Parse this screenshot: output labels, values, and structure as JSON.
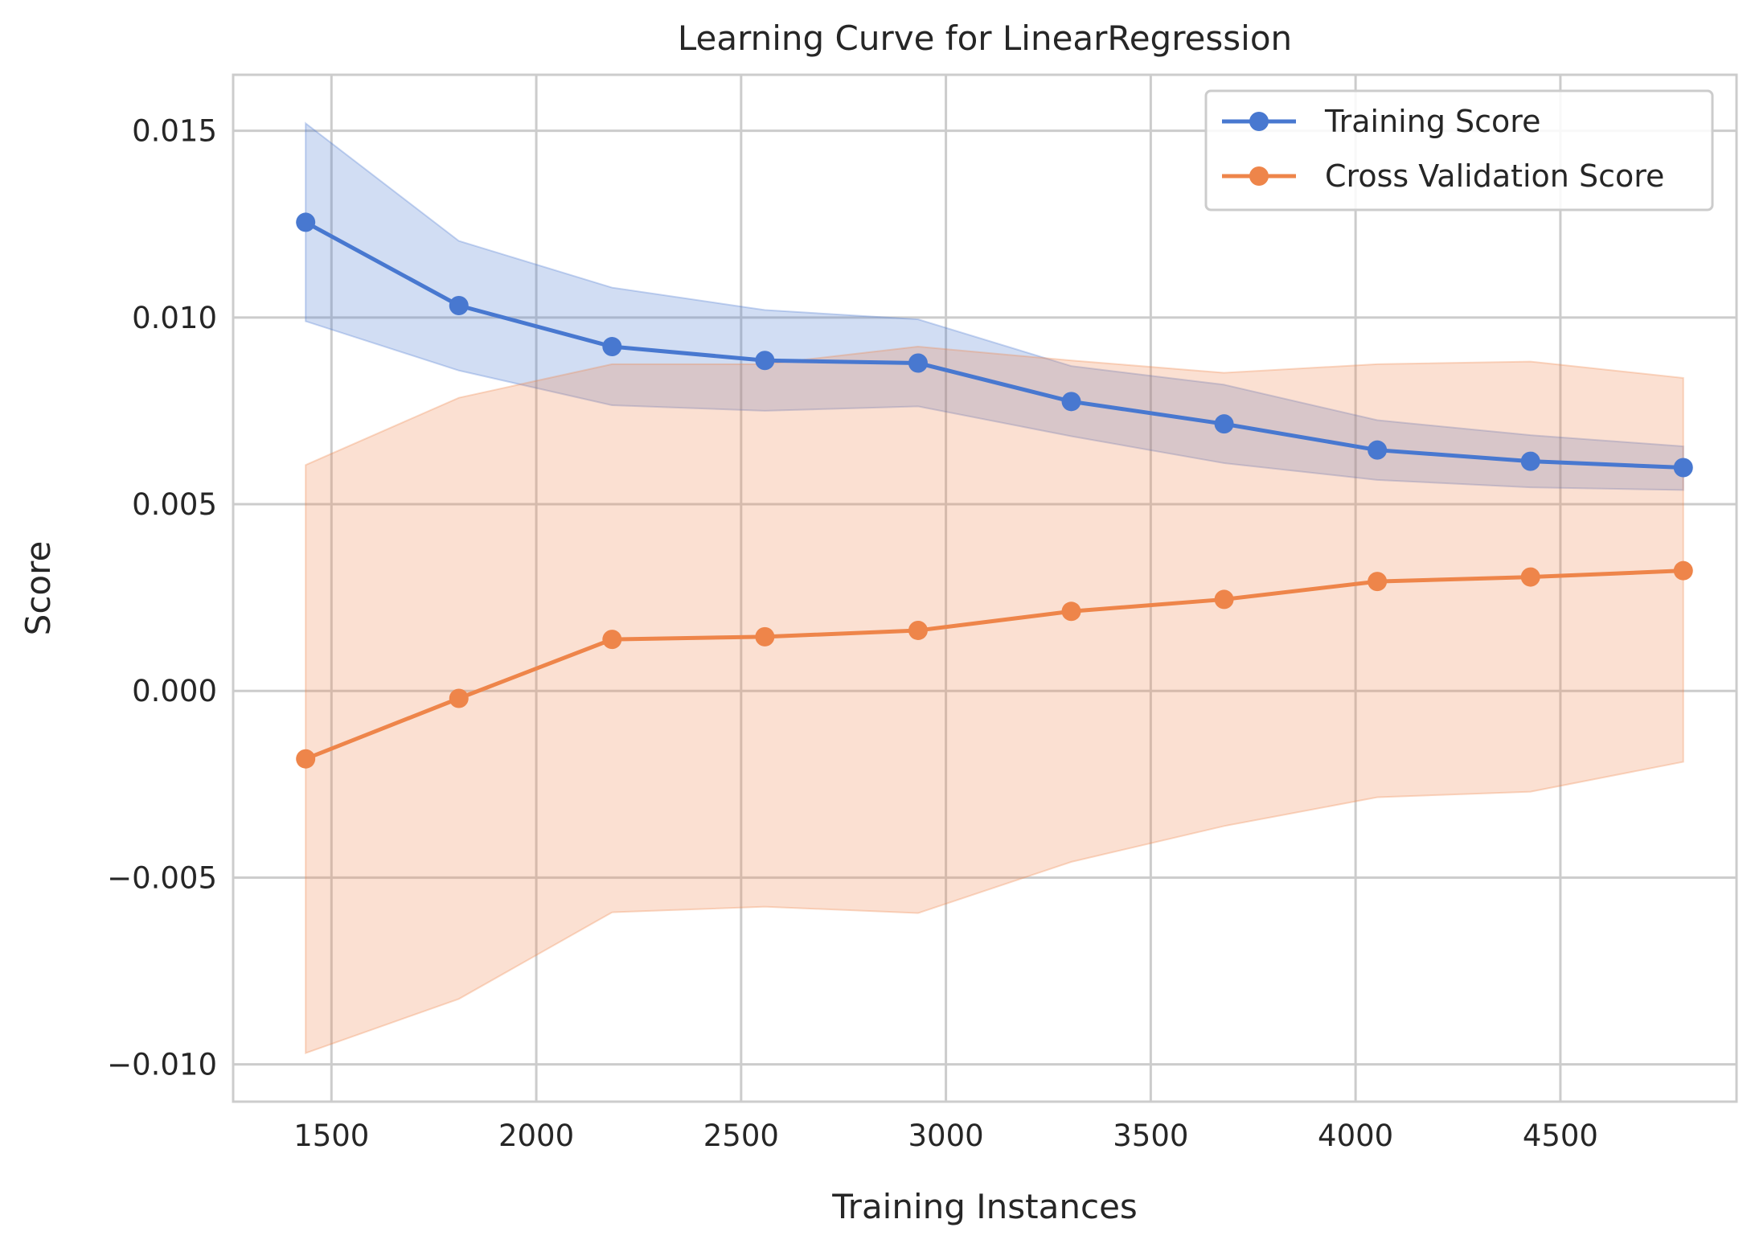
{
  "chart_data": {
    "type": "line",
    "title": "Learning Curve for LinearRegression",
    "xlabel": "Training Instances",
    "ylabel": "Score",
    "xlim": [
      1260,
      4930
    ],
    "ylim": [
      -0.011,
      0.0165
    ],
    "x": [
      1437,
      1811,
      2185,
      2558,
      2932,
      3306,
      3679,
      4053,
      4427,
      4800
    ],
    "xticks": [
      1500,
      2000,
      2500,
      3000,
      3500,
      4000,
      4500
    ],
    "xtick_labels": [
      "1500",
      "2000",
      "2500",
      "3000",
      "3500",
      "4000",
      "4500"
    ],
    "yticks": [
      -0.01,
      -0.005,
      0.0,
      0.005,
      0.01,
      0.015
    ],
    "ytick_labels": [
      "−0.010",
      "−0.005",
      "0.000",
      "0.005",
      "0.010",
      "0.015"
    ],
    "grid": true,
    "legend_position": "top-right",
    "series": [
      {
        "name": "Training Score",
        "color": "#4878d0",
        "values": [
          0.01255,
          0.01032,
          0.00922,
          0.00885,
          0.00878,
          0.00775,
          0.00715,
          0.00645,
          0.00615,
          0.00598
        ],
        "upper": [
          0.0152,
          0.01205,
          0.0108,
          0.0102,
          0.00995,
          0.0087,
          0.0082,
          0.00725,
          0.00685,
          0.00655
        ],
        "lower": [
          0.0099,
          0.00858,
          0.00765,
          0.0075,
          0.00762,
          0.00682,
          0.0061,
          0.00565,
          0.00545,
          0.00538
        ]
      },
      {
        "name": "Cross Validation Score",
        "color": "#ee854a",
        "values": [
          -0.00182,
          -0.0002,
          0.00138,
          0.00145,
          0.00162,
          0.00213,
          0.00245,
          0.00293,
          0.00305,
          0.00322
        ],
        "upper": [
          0.00605,
          0.00785,
          0.00875,
          0.00875,
          0.00922,
          0.00885,
          0.00852,
          0.00875,
          0.00882,
          0.00838
        ],
        "lower": [
          -0.0097,
          -0.00825,
          -0.00593,
          -0.00578,
          -0.00595,
          -0.00458,
          -0.00362,
          -0.00285,
          -0.0027,
          -0.0019
        ]
      }
    ]
  }
}
